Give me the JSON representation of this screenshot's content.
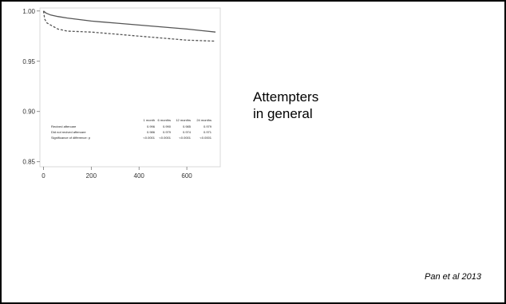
{
  "caption": {
    "line1": "Attempters",
    "line2": "in general"
  },
  "citation": "Pan et al 2013",
  "chart_data": {
    "type": "line",
    "title": "",
    "xlabel": "",
    "ylabel": "",
    "xlim": [
      -15,
      740
    ],
    "ylim": [
      0.845,
      1.003
    ],
    "x_ticks": [
      0,
      200,
      400,
      600
    ],
    "y_ticks": [
      0.85,
      0.9,
      0.95,
      1.0
    ],
    "x_tick_labels": [
      "0",
      "200",
      "400",
      "600"
    ],
    "y_tick_labels": [
      "0.85",
      "0.90",
      "0.95",
      "1.00"
    ],
    "grid": false,
    "legend": "none",
    "series": [
      {
        "style": "solid",
        "color": "#555555",
        "points": [
          [
            0,
            1.0
          ],
          [
            10,
            0.998
          ],
          [
            30,
            0.996
          ],
          [
            60,
            0.9945
          ],
          [
            100,
            0.993
          ],
          [
            200,
            0.99
          ],
          [
            300,
            0.988
          ],
          [
            400,
            0.986
          ],
          [
            500,
            0.984
          ],
          [
            600,
            0.982
          ],
          [
            720,
            0.979
          ]
        ]
      },
      {
        "style": "dashed",
        "color": "#555555",
        "points": [
          [
            0,
            1.0
          ],
          [
            5,
            0.992
          ],
          [
            15,
            0.988
          ],
          [
            30,
            0.986
          ],
          [
            60,
            0.982
          ],
          [
            100,
            0.98
          ],
          [
            200,
            0.979
          ],
          [
            300,
            0.977
          ],
          [
            400,
            0.975
          ],
          [
            500,
            0.973
          ],
          [
            600,
            0.971
          ],
          [
            720,
            0.97
          ]
        ]
      }
    ],
    "table": {
      "columns": [
        "",
        "1 month",
        "6 months",
        "12 months",
        "24 months"
      ],
      "rows": [
        [
          "Recived aftercare",
          "0.996",
          "0.990",
          "0.985",
          "0.979"
        ],
        [
          "Did not recived aftercare",
          "0.986",
          "0.979",
          "0.974",
          "0.971"
        ],
        [
          "Significance of difference: p",
          "<0.0001",
          "<0.0001",
          "<0.0001",
          "<0.0001"
        ]
      ]
    }
  }
}
